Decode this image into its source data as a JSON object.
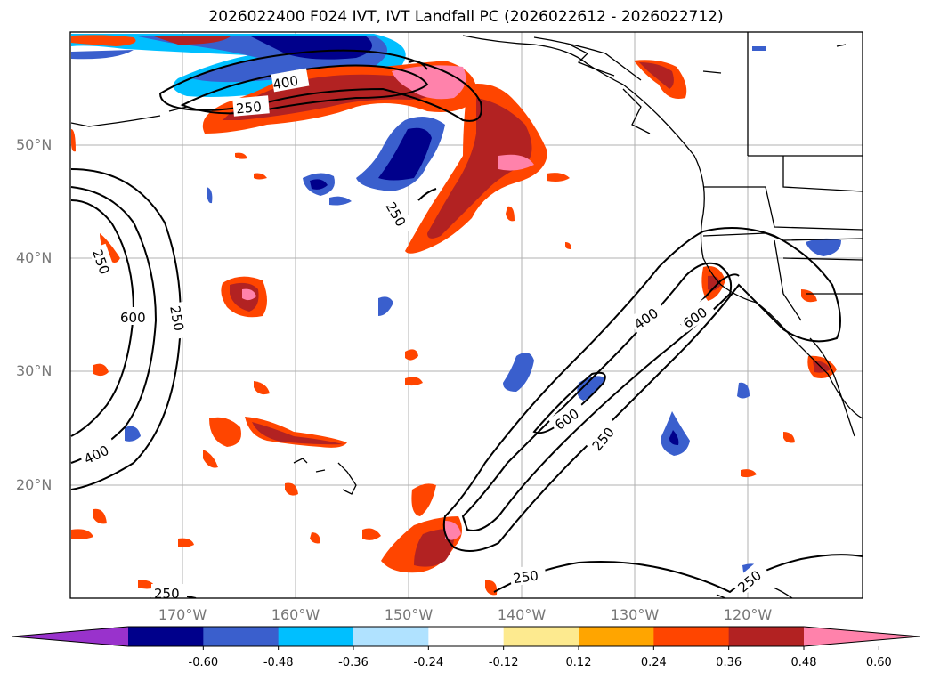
{
  "title": "2026022400 F024 IVT, IVT Landfall PC (2026022612 - 2026022712)",
  "map": {
    "lat_labels": [
      "50°N",
      "40°N",
      "30°N",
      "20°N"
    ],
    "lon_labels": [
      "170°W",
      "160°W",
      "150°W",
      "140°W",
      "130°W",
      "120°W"
    ],
    "contour_levels": [
      "250",
      "400",
      "600"
    ],
    "contour_labels": [
      {
        "id": "c1",
        "text": "400"
      },
      {
        "id": "c2",
        "text": "250"
      },
      {
        "id": "c3",
        "text": "250"
      },
      {
        "id": "c4",
        "text": "250"
      },
      {
        "id": "c5",
        "text": "600"
      },
      {
        "id": "c6",
        "text": "250"
      },
      {
        "id": "c7",
        "text": "400"
      },
      {
        "id": "c8",
        "text": "600"
      },
      {
        "id": "c9",
        "text": "400"
      },
      {
        "id": "c10",
        "text": "600"
      },
      {
        "id": "c11",
        "text": "250"
      },
      {
        "id": "c12",
        "text": "250"
      },
      {
        "id": "c13",
        "text": "250"
      },
      {
        "id": "c14",
        "text": "250"
      }
    ]
  },
  "colorbar": {
    "colors": [
      "#9932cc",
      "#00008b",
      "#3a5fcd",
      "#00bfff",
      "#b0e2ff",
      "#ffffff",
      "#fdea8f",
      "#ffa500",
      "#ff4500",
      "#b22222",
      "#ff82ab"
    ],
    "labels": [
      "-0.60",
      "-0.48",
      "-0.36",
      "-0.24",
      "-0.12",
      "0.12",
      "0.24",
      "0.36",
      "0.48",
      "0.60"
    ]
  }
}
